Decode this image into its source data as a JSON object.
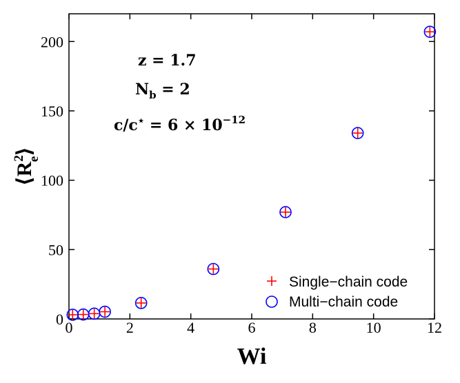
{
  "chart_data": {
    "type": "scatter",
    "xlabel": "Wi",
    "ylabel": "⟨R",
    "ylabel_sub": "e",
    "ylabel_sup": "2",
    "ylabel_close": "⟩",
    "xlim": [
      0,
      12
    ],
    "ylim": [
      0,
      220
    ],
    "xticks": [
      0,
      2,
      4,
      6,
      8,
      10,
      12
    ],
    "yticks": [
      0,
      50,
      100,
      150,
      200
    ],
    "grid": false,
    "legend_position": "bottom-right",
    "annotations": [
      {
        "text": "z = 1.7"
      },
      {
        "text": "N",
        "sub": "b",
        "rest": " = 2"
      },
      {
        "text": "c/c",
        "sup1": "⋆",
        "mid": " = 6 × 10",
        "sup2": "−12"
      }
    ],
    "series": [
      {
        "name": "Single−chain code",
        "marker": "plus",
        "color": "#ff0000",
        "x": [
          0.12,
          0.47,
          0.83,
          1.18,
          2.37,
          4.74,
          7.11,
          9.48,
          11.85
        ],
        "y": [
          3.0,
          3.2,
          3.8,
          5.2,
          11.5,
          36.0,
          77.0,
          134.0,
          207.0
        ]
      },
      {
        "name": "Multi−chain code",
        "marker": "circle",
        "color": "#0000ff",
        "x": [
          0.12,
          0.47,
          0.83,
          1.18,
          2.37,
          4.74,
          7.11,
          9.48,
          11.85
        ],
        "y": [
          3.0,
          3.2,
          3.8,
          5.2,
          11.5,
          36.0,
          77.0,
          134.0,
          207.0
        ]
      }
    ]
  }
}
